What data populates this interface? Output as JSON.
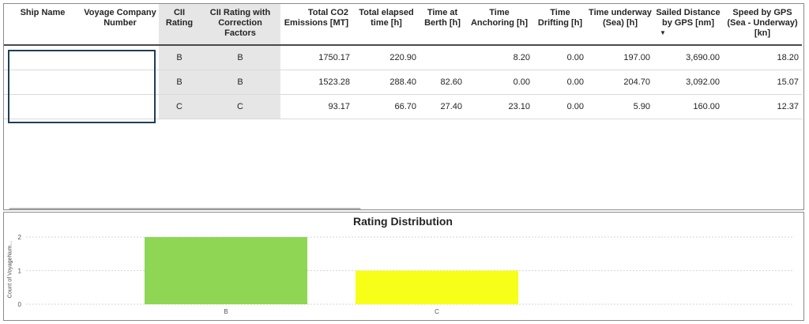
{
  "table": {
    "columns": [
      {
        "key": "ship_name",
        "label": "Ship Name"
      },
      {
        "key": "voyage_number",
        "label": "Voyage Company Number"
      },
      {
        "key": "cii_rating",
        "label": "CII Rating"
      },
      {
        "key": "cii_rating_corr",
        "label": "CII Rating with Correction Factors"
      },
      {
        "key": "total_co2",
        "label": "Total CO2 Emissions [MT]"
      },
      {
        "key": "elapsed",
        "label": "Total elapsed time [h]"
      },
      {
        "key": "berth",
        "label": "Time at Berth [h]"
      },
      {
        "key": "anchoring",
        "label": "Time Anchoring [h]"
      },
      {
        "key": "drifting",
        "label": "Time Drifting [h]"
      },
      {
        "key": "underway",
        "label": "Time underway (Sea) [h]"
      },
      {
        "key": "distance",
        "label": "Sailed Distance by GPS [nm]"
      },
      {
        "key": "speed",
        "label": "Speed by GPS (Sea - Underway) [kn]"
      }
    ],
    "sort_indicator": "▼",
    "rows": [
      {
        "ship_name": "",
        "voyage_number": "",
        "cii_rating": "B",
        "cii_rating_corr": "B",
        "total_co2": "1750.17",
        "elapsed": "220.90",
        "berth": "",
        "anchoring": "8.20",
        "drifting": "0.00",
        "underway": "197.00",
        "distance": "3,690.00",
        "speed": "18.20"
      },
      {
        "ship_name": "",
        "voyage_number": "",
        "cii_rating": "B",
        "cii_rating_corr": "B",
        "total_co2": "1523.28",
        "elapsed": "288.40",
        "berth": "82.60",
        "anchoring": "0.00",
        "drifting": "0.00",
        "underway": "204.70",
        "distance": "3,092.00",
        "speed": "15.07"
      },
      {
        "ship_name": "",
        "voyage_number": "",
        "cii_rating": "C",
        "cii_rating_corr": "C",
        "total_co2": "93.17",
        "elapsed": "66.70",
        "berth": "27.40",
        "anchoring": "23.10",
        "drifting": "0.00",
        "underway": "5.90",
        "distance": "160.00",
        "speed": "12.37"
      }
    ]
  },
  "colors": {
    "bar_b": "#8ed654",
    "bar_c": "#f7ff19",
    "highlight_column": "#e6e6e6",
    "selection_border": "#1e3f55"
  },
  "chart_data": {
    "type": "bar",
    "title": "Rating Distribution",
    "ylabel": "Count of VoyageNum...",
    "xlabel": "",
    "categories": [
      "B",
      "C"
    ],
    "values": [
      2,
      1
    ],
    "colors": [
      "#8ed654",
      "#f7ff19"
    ],
    "ylim": [
      0,
      2
    ],
    "yticks": [
      0,
      1,
      2
    ],
    "grid": true
  }
}
